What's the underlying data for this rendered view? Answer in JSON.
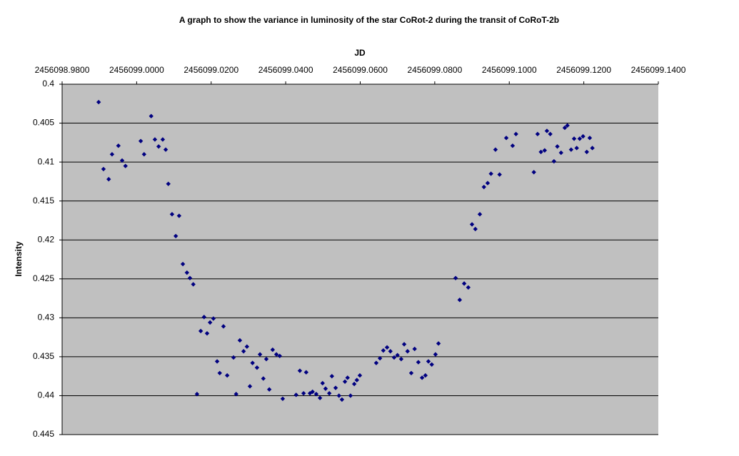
{
  "chart_data": {
    "type": "scatter",
    "title": "A graph to show the variance in luminosity of the star CoRot-2 during the transit of CoRoT-2b",
    "x_label": "JD",
    "y_label": "Intensity",
    "xlim": [
      2456098.98,
      2456099.14
    ],
    "xticks": [
      {
        "value": 2456098.98,
        "label": "2456098.9800"
      },
      {
        "value": 2456099.0,
        "label": "2456099.0000"
      },
      {
        "value": 2456099.02,
        "label": "2456099.0200"
      },
      {
        "value": 2456099.04,
        "label": "2456099.0400"
      },
      {
        "value": 2456099.06,
        "label": "2456099.0600"
      },
      {
        "value": 2456099.08,
        "label": "2456099.0800"
      },
      {
        "value": 2456099.1,
        "label": "2456099.1000"
      },
      {
        "value": 2456099.12,
        "label": "2456099.1200"
      },
      {
        "value": 2456099.14,
        "label": "2456099.1400"
      }
    ],
    "ylim": [
      0.4,
      0.445
    ],
    "y_inverted": true,
    "yticks": [
      0.4,
      0.405,
      0.41,
      0.415,
      0.42,
      0.425,
      0.43,
      0.435,
      0.44,
      0.445
    ],
    "grid": true,
    "color": "#000080",
    "x": [
      2456098.9898,
      2456098.9911,
      2456098.9925,
      2456098.9934,
      2456098.9951,
      2456098.9961,
      2456098.997,
      2456099.0011,
      2456099.002,
      2456099.0039,
      2456099.0049,
      2456099.0059,
      2456099.007,
      2456099.0078,
      2456099.0085,
      2456099.0095,
      2456099.0105,
      2456099.0114,
      2456099.0124,
      2456099.0135,
      2456099.0143,
      2456099.0152,
      2456099.0162,
      2456099.0172,
      2456099.0181,
      2456099.0189,
      2456099.0197,
      2456099.0206,
      2456099.0216,
      2456099.0223,
      2456099.0233,
      2456099.0243,
      2456099.026,
      2456099.0267,
      2456099.0277,
      2456099.0287,
      2456099.0296,
      2456099.0304,
      2456099.0311,
      2456099.0323,
      2456099.0331,
      2456099.034,
      2456099.0348,
      2456099.0356,
      2456099.0365,
      2456099.0375,
      2456099.0384,
      2456099.0392,
      2456099.0428,
      2456099.0438,
      2456099.0448,
      2456099.0455,
      2456099.0465,
      2456099.0472,
      2456099.0482,
      2456099.0492,
      2456099.0499,
      2456099.0507,
      2456099.0517,
      2456099.0524,
      2456099.0534,
      2456099.0543,
      2456099.0551,
      2456099.0559,
      2456099.0566,
      2456099.0574,
      2456099.0584,
      2456099.0591,
      2456099.0599,
      2456099.0643,
      2456099.0653,
      2456099.0662,
      2456099.0672,
      2456099.0681,
      2456099.0691,
      2456099.07,
      2456099.071,
      2456099.0718,
      2456099.0727,
      2456099.0737,
      2456099.0746,
      2456099.0756,
      2456099.0766,
      2456099.0775,
      2456099.0783,
      2456099.0792,
      2456099.0802,
      2456099.081,
      2456099.0856,
      2456099.0867,
      2456099.0879,
      2456099.089,
      2456099.09,
      2456099.0909,
      2456099.0921,
      2456099.0932,
      2456099.0942,
      2456099.0951,
      2456099.0963,
      2456099.0974,
      2456099.0992,
      2456099.1009,
      2456099.1018,
      2456099.1066,
      2456099.1076,
      2456099.1085,
      2456099.1095,
      2456099.1101,
      2456099.111,
      2456099.112,
      2456099.1129,
      2456099.1139,
      2456099.1149,
      2456099.1156,
      2456099.1166,
      2456099.1174,
      2456099.1181,
      2456099.1189,
      2456099.1198,
      2456099.1208,
      2456099.1216,
      2456099.1223
    ],
    "values": [
      0.4023,
      0.4109,
      0.4122,
      0.409,
      0.4079,
      0.4098,
      0.4105,
      0.4073,
      0.409,
      0.4041,
      0.4071,
      0.408,
      0.4071,
      0.4084,
      0.4128,
      0.4167,
      0.4195,
      0.4169,
      0.4231,
      0.4242,
      0.4249,
      0.4257,
      0.4398,
      0.4317,
      0.4299,
      0.432,
      0.4306,
      0.4301,
      0.4356,
      0.4371,
      0.4311,
      0.4374,
      0.4351,
      0.4398,
      0.4329,
      0.4343,
      0.4337,
      0.4388,
      0.4358,
      0.4364,
      0.4347,
      0.4378,
      0.4353,
      0.4392,
      0.4341,
      0.4347,
      0.4349,
      0.4404,
      0.4399,
      0.4368,
      0.4397,
      0.437,
      0.4397,
      0.4395,
      0.4398,
      0.4403,
      0.4384,
      0.4391,
      0.4397,
      0.4375,
      0.439,
      0.44,
      0.4405,
      0.4382,
      0.4377,
      0.44,
      0.4385,
      0.438,
      0.4374,
      0.4358,
      0.4352,
      0.4342,
      0.4338,
      0.4343,
      0.4351,
      0.4348,
      0.4353,
      0.4334,
      0.4343,
      0.4371,
      0.434,
      0.4357,
      0.4377,
      0.4374,
      0.4356,
      0.436,
      0.4347,
      0.4333,
      0.4249,
      0.4277,
      0.4256,
      0.4261,
      0.418,
      0.4186,
      0.4167,
      0.4132,
      0.4127,
      0.4115,
      0.4084,
      0.4116,
      0.4069,
      0.4079,
      0.4064,
      0.4113,
      0.4064,
      0.4087,
      0.4085,
      0.406,
      0.4064,
      0.4099,
      0.408,
      0.4088,
      0.4056,
      0.4053,
      0.4084,
      0.407,
      0.4082,
      0.407,
      0.4067,
      0.4087,
      0.4069,
      0.4082
    ]
  }
}
